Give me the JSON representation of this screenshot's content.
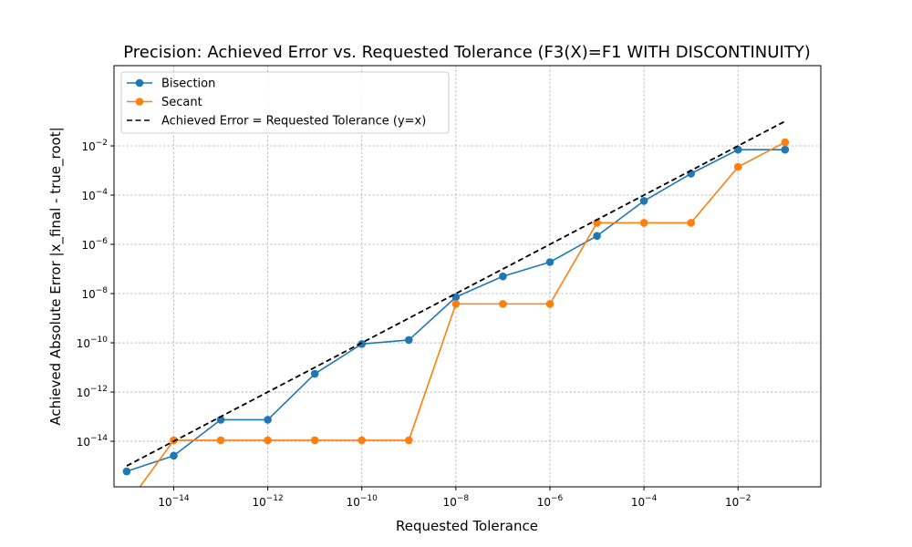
{
  "chart_data": {
    "type": "line",
    "title": "Precision: Achieved Error vs. Requested Tolerance (F3(X)=F1 WITH DISCONTINUITY)",
    "xlabel": "Requested Tolerance",
    "ylabel": "Achieved Absolute Error |x_final - true_root|",
    "xscale": "log",
    "yscale": "log",
    "xlim_exp": [
      -15.27,
      -0.24
    ],
    "ylim_exp": [
      -15.85,
      1.26
    ],
    "x_tick_exponents": [
      -14,
      -12,
      -10,
      -8,
      -6,
      -4,
      -2
    ],
    "y_tick_exponents": [
      -14,
      -12,
      -10,
      -8,
      -6,
      -4,
      -2
    ],
    "tick_base": "10",
    "grid": true,
    "legend_position": "upper-left",
    "x": [
      1e-15,
      1e-14,
      1e-13,
      1e-12,
      1e-11,
      1e-10,
      1e-09,
      1e-08,
      1e-07,
      1e-06,
      1e-05,
      0.0001,
      0.001,
      0.01,
      0.1
    ],
    "series": [
      {
        "name": "Bisection",
        "color": "#1f77b4",
        "marker": "circle",
        "values": [
          6e-16,
          2.6e-15,
          7.5e-14,
          7.5e-14,
          5.5e-12,
          9e-11,
          1.3e-10,
          7.2e-09,
          5e-08,
          1.9e-07,
          2.2e-06,
          5.8e-05,
          0.00075,
          0.007,
          0.007
        ]
      },
      {
        "name": "Secant",
        "color": "#ff7f0e",
        "marker": "circle",
        "values": [
          0,
          1.1e-14,
          1.1e-14,
          1.1e-14,
          1.1e-14,
          1.1e-14,
          1.1e-14,
          3.8e-09,
          3.8e-09,
          3.8e-09,
          7.5e-06,
          7.5e-06,
          7.5e-06,
          0.0014,
          0.014
        ]
      },
      {
        "name": "Achieved Error = Requested Tolerance (y=x)",
        "color": "#000000",
        "style": "dashed",
        "marker": "none",
        "x": [
          1e-15,
          0.1
        ],
        "values": [
          1e-15,
          0.1
        ]
      }
    ]
  }
}
